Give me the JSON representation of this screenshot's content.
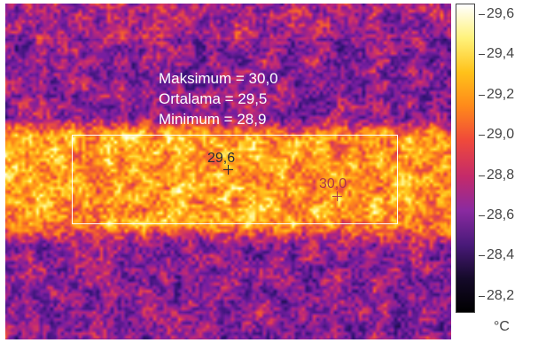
{
  "measurements": {
    "max_label": "Maksimum = 30,0",
    "avg_label": "Ortalama = 29,5",
    "min_label": "Minimum = 28,9"
  },
  "spots": [
    {
      "value": "29,6"
    },
    {
      "value": "30,0"
    }
  ],
  "scale": {
    "ticks": [
      "29,6",
      "29,4",
      "29,2",
      "29,0",
      "28,8",
      "28,6",
      "28,4",
      "28,2"
    ],
    "unit": "°C",
    "colors": [
      "#ffffff",
      "#fff27a",
      "#ffc21a",
      "#ff8a1a",
      "#f04a3a",
      "#c42a6a",
      "#8a2aa0",
      "#4a1a7a",
      "#150a2a",
      "#000000"
    ]
  }
}
